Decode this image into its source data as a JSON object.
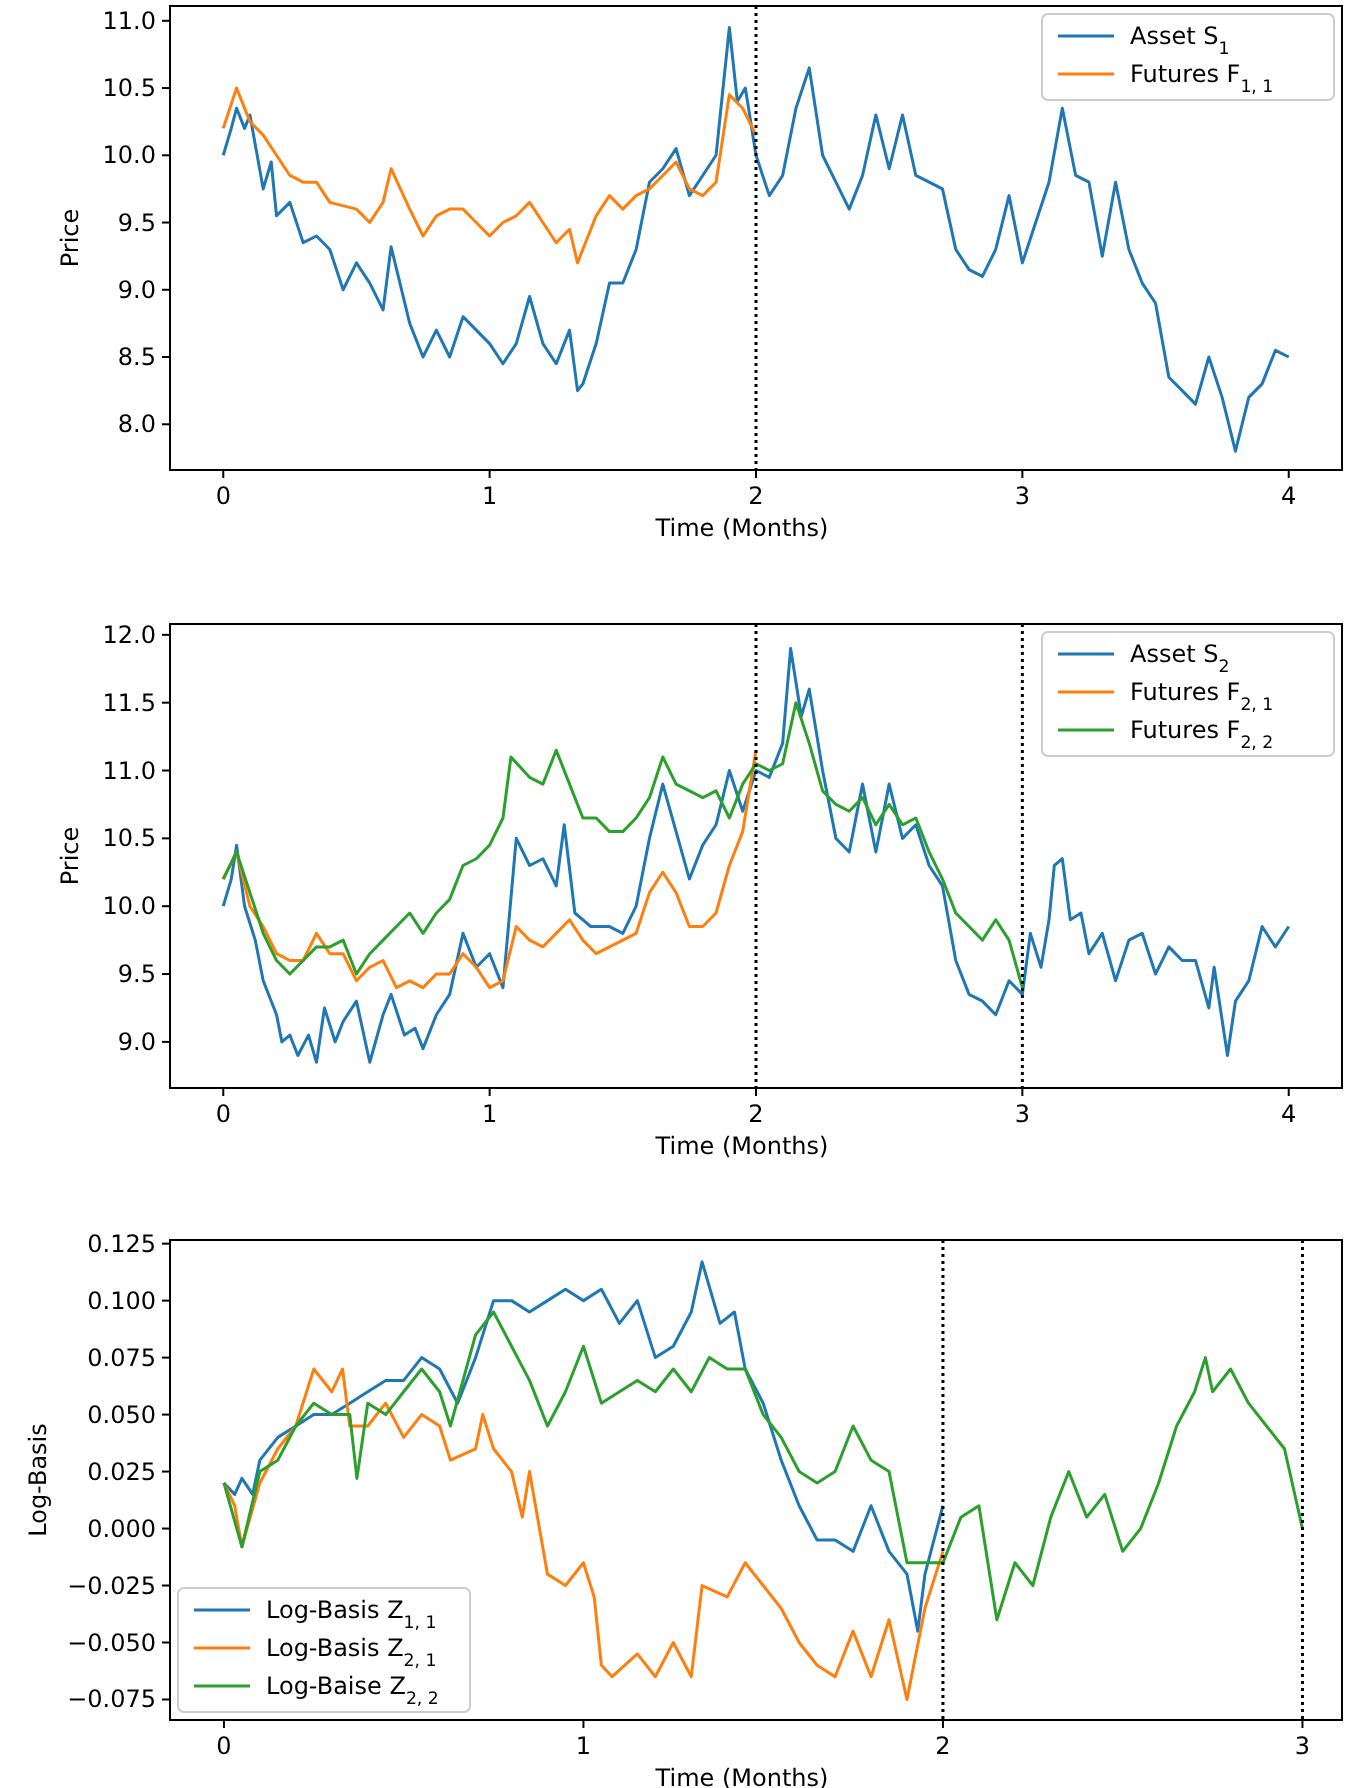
{
  "chart_data": [
    {
      "type": "line",
      "xlabel": "Time (Months)",
      "ylabel": "Price",
      "xlim": [
        -0.2,
        4.2
      ],
      "ylim": [
        7.66,
        11.11
      ],
      "xticks": [
        0,
        1,
        2,
        3,
        4
      ],
      "yticks": [
        {
          "value": 8,
          "label": "8.0"
        },
        {
          "value": 8.5,
          "label": "8.5"
        },
        {
          "value": 9,
          "label": "9.0"
        },
        {
          "value": 9.5,
          "label": "9.5"
        },
        {
          "value": 10,
          "label": "10.0"
        },
        {
          "value": 10.5,
          "label": "10.5"
        },
        {
          "value": 11,
          "label": "11.0"
        }
      ],
      "legend": "top right",
      "grid": false,
      "line_style": "solid",
      "ref_lines": [
        {
          "axis": "x",
          "value": 2,
          "color": "#000000",
          "line_style": "dotted"
        }
      ],
      "series": [
        {
          "name": "Asset S$_{1}$",
          "color": "#1f77b4",
          "x": [
            0,
            0.03,
            0.05,
            0.08,
            0.1,
            0.15,
            0.18,
            0.2,
            0.25,
            0.3,
            0.35,
            0.4,
            0.45,
            0.5,
            0.55,
            0.6,
            0.63,
            0.7,
            0.75,
            0.8,
            0.85,
            0.9,
            0.95,
            1.0,
            1.05,
            1.1,
            1.15,
            1.2,
            1.25,
            1.3,
            1.33,
            1.35,
            1.4,
            1.45,
            1.5,
            1.55,
            1.6,
            1.65,
            1.7,
            1.75,
            1.8,
            1.85,
            1.9,
            1.93,
            1.96,
            2.0,
            2.05,
            2.1,
            2.15,
            2.2,
            2.25,
            2.3,
            2.35,
            2.4,
            2.45,
            2.5,
            2.55,
            2.6,
            2.7,
            2.75,
            2.8,
            2.85,
            2.9,
            2.95,
            3.0,
            3.05,
            3.1,
            3.15,
            3.2,
            3.25,
            3.3,
            3.35,
            3.4,
            3.45,
            3.5,
            3.55,
            3.6,
            3.65,
            3.7,
            3.75,
            3.8,
            3.85,
            3.9,
            3.95,
            4.0
          ],
          "values": [
            10.0,
            10.2,
            10.35,
            10.2,
            10.3,
            9.75,
            9.95,
            9.55,
            9.65,
            9.35,
            9.4,
            9.3,
            9.0,
            9.2,
            9.05,
            8.85,
            9.32,
            8.75,
            8.5,
            8.7,
            8.5,
            8.8,
            8.7,
            8.6,
            8.45,
            8.6,
            8.95,
            8.6,
            8.45,
            8.7,
            8.25,
            8.3,
            8.6,
            9.05,
            9.05,
            9.3,
            9.8,
            9.9,
            10.05,
            9.7,
            9.85,
            10.0,
            10.95,
            10.4,
            10.5,
            10.0,
            9.7,
            9.85,
            10.35,
            10.65,
            10.0,
            9.8,
            9.6,
            9.85,
            10.3,
            9.9,
            10.3,
            9.85,
            9.75,
            9.3,
            9.15,
            9.1,
            9.3,
            9.7,
            9.2,
            9.5,
            9.8,
            10.35,
            9.85,
            9.8,
            9.25,
            9.8,
            9.3,
            9.05,
            8.9,
            8.35,
            8.25,
            8.15,
            8.5,
            8.2,
            7.8,
            8.2,
            8.3,
            8.55,
            8.5
          ]
        },
        {
          "name": "Futures F$_{1, 1}$",
          "color": "#ff7f0e",
          "x": [
            0,
            0.05,
            0.1,
            0.15,
            0.2,
            0.25,
            0.3,
            0.35,
            0.4,
            0.5,
            0.55,
            0.6,
            0.63,
            0.7,
            0.75,
            0.8,
            0.85,
            0.9,
            0.95,
            1.0,
            1.05,
            1.1,
            1.15,
            1.2,
            1.25,
            1.3,
            1.33,
            1.4,
            1.45,
            1.5,
            1.55,
            1.6,
            1.65,
            1.7,
            1.75,
            1.8,
            1.85,
            1.9,
            1.95,
            2.0
          ],
          "values": [
            10.2,
            10.5,
            10.25,
            10.15,
            10.0,
            9.85,
            9.8,
            9.8,
            9.65,
            9.6,
            9.5,
            9.65,
            9.9,
            9.6,
            9.4,
            9.55,
            9.6,
            9.6,
            9.5,
            9.4,
            9.5,
            9.55,
            9.65,
            9.5,
            9.35,
            9.45,
            9.2,
            9.55,
            9.7,
            9.6,
            9.7,
            9.75,
            9.85,
            9.95,
            9.75,
            9.7,
            9.8,
            10.45,
            10.35,
            10.15
          ]
        }
      ]
    },
    {
      "type": "line",
      "xlabel": "Time (Months)",
      "ylabel": "Price",
      "xlim": [
        -0.2,
        4.2
      ],
      "ylim": [
        8.66,
        12.08
      ],
      "xticks": [
        0,
        1,
        2,
        3,
        4
      ],
      "yticks": [
        {
          "value": 9,
          "label": "9.0"
        },
        {
          "value": 9.5,
          "label": "9.5"
        },
        {
          "value": 10,
          "label": "10.0"
        },
        {
          "value": 10.5,
          "label": "10.5"
        },
        {
          "value": 11,
          "label": "11.0"
        },
        {
          "value": 11.5,
          "label": "11.5"
        },
        {
          "value": 12,
          "label": "12.0"
        }
      ],
      "legend": "top right",
      "grid": false,
      "line_style": "solid",
      "ref_lines": [
        {
          "axis": "x",
          "value": 2,
          "color": "#000000",
          "line_style": "dotted"
        },
        {
          "axis": "x",
          "value": 3,
          "color": "#000000",
          "line_style": "dotted"
        }
      ],
      "series": [
        {
          "name": "Asset S$_{2}$",
          "color": "#1f77b4",
          "x": [
            0,
            0.03,
            0.05,
            0.08,
            0.12,
            0.15,
            0.2,
            0.22,
            0.25,
            0.28,
            0.32,
            0.35,
            0.38,
            0.42,
            0.45,
            0.5,
            0.55,
            0.6,
            0.63,
            0.68,
            0.72,
            0.75,
            0.8,
            0.85,
            0.9,
            0.95,
            1.0,
            1.05,
            1.1,
            1.15,
            1.2,
            1.25,
            1.28,
            1.32,
            1.38,
            1.45,
            1.5,
            1.55,
            1.6,
            1.65,
            1.7,
            1.75,
            1.8,
            1.85,
            1.9,
            1.95,
            2.0,
            2.05,
            2.1,
            2.13,
            2.17,
            2.2,
            2.25,
            2.3,
            2.35,
            2.4,
            2.45,
            2.5,
            2.55,
            2.6,
            2.65,
            2.7,
            2.75,
            2.8,
            2.85,
            2.9,
            2.95,
            3.0,
            3.03,
            3.07,
            3.1,
            3.12,
            3.15,
            3.18,
            3.22,
            3.25,
            3.3,
            3.35,
            3.4,
            3.45,
            3.5,
            3.55,
            3.6,
            3.65,
            3.7,
            3.72,
            3.77,
            3.8,
            3.85,
            3.9,
            3.95,
            4.0
          ],
          "values": [
            10.0,
            10.2,
            10.45,
            10.0,
            9.75,
            9.45,
            9.2,
            9.0,
            9.05,
            8.9,
            9.05,
            8.85,
            9.25,
            9.0,
            9.15,
            9.3,
            8.85,
            9.2,
            9.35,
            9.05,
            9.1,
            8.95,
            9.2,
            9.35,
            9.8,
            9.55,
            9.65,
            9.4,
            10.5,
            10.3,
            10.35,
            10.15,
            10.6,
            9.95,
            9.85,
            9.85,
            9.8,
            10.0,
            10.5,
            10.9,
            10.55,
            10.2,
            10.45,
            10.6,
            11.0,
            10.7,
            11.0,
            10.95,
            11.2,
            11.9,
            11.4,
            11.6,
            11.0,
            10.5,
            10.4,
            10.9,
            10.4,
            10.9,
            10.5,
            10.6,
            10.3,
            10.15,
            9.6,
            9.35,
            9.3,
            9.2,
            9.45,
            9.35,
            9.8,
            9.55,
            9.9,
            10.3,
            10.35,
            9.9,
            9.95,
            9.65,
            9.8,
            9.45,
            9.75,
            9.8,
            9.5,
            9.7,
            9.6,
            9.6,
            9.25,
            9.55,
            8.9,
            9.3,
            9.45,
            9.85,
            9.7,
            9.85
          ]
        },
        {
          "name": "Futures F$_{2, 1}$",
          "color": "#ff7f0e",
          "x": [
            0,
            0.05,
            0.1,
            0.15,
            0.2,
            0.25,
            0.3,
            0.35,
            0.4,
            0.45,
            0.5,
            0.55,
            0.6,
            0.65,
            0.7,
            0.75,
            0.8,
            0.85,
            0.9,
            0.95,
            1.0,
            1.05,
            1.1,
            1.15,
            1.2,
            1.25,
            1.3,
            1.35,
            1.4,
            1.45,
            1.5,
            1.55,
            1.6,
            1.65,
            1.7,
            1.75,
            1.8,
            1.85,
            1.9,
            1.95,
            2.0
          ],
          "values": [
            10.2,
            10.4,
            10.0,
            9.85,
            9.65,
            9.6,
            9.6,
            9.8,
            9.65,
            9.65,
            9.45,
            9.55,
            9.6,
            9.4,
            9.45,
            9.4,
            9.5,
            9.5,
            9.65,
            9.55,
            9.4,
            9.45,
            9.85,
            9.75,
            9.7,
            9.8,
            9.9,
            9.75,
            9.65,
            9.7,
            9.75,
            9.8,
            10.1,
            10.25,
            10.1,
            9.85,
            9.85,
            9.95,
            10.3,
            10.55,
            11.15
          ]
        },
        {
          "name": "Futures F$_{2, 2}$",
          "color": "#2ca02c",
          "x": [
            0,
            0.05,
            0.1,
            0.15,
            0.2,
            0.25,
            0.3,
            0.35,
            0.4,
            0.45,
            0.5,
            0.55,
            0.6,
            0.65,
            0.7,
            0.75,
            0.8,
            0.85,
            0.9,
            0.95,
            1.0,
            1.05,
            1.08,
            1.15,
            1.2,
            1.25,
            1.3,
            1.35,
            1.4,
            1.45,
            1.5,
            1.55,
            1.6,
            1.65,
            1.7,
            1.75,
            1.8,
            1.85,
            1.9,
            1.95,
            2.0,
            2.05,
            2.1,
            2.15,
            2.2,
            2.25,
            2.3,
            2.35,
            2.4,
            2.45,
            2.5,
            2.55,
            2.6,
            2.65,
            2.7,
            2.75,
            2.8,
            2.85,
            2.9,
            2.95,
            3.0
          ],
          "values": [
            10.2,
            10.4,
            10.1,
            9.8,
            9.6,
            9.5,
            9.6,
            9.7,
            9.7,
            9.75,
            9.5,
            9.65,
            9.75,
            9.85,
            9.95,
            9.8,
            9.95,
            10.05,
            10.3,
            10.35,
            10.45,
            10.65,
            11.1,
            10.95,
            10.9,
            11.15,
            10.9,
            10.65,
            10.65,
            10.55,
            10.55,
            10.65,
            10.8,
            11.1,
            10.9,
            10.85,
            10.8,
            10.85,
            10.65,
            10.9,
            11.05,
            11.0,
            11.05,
            11.5,
            11.2,
            10.85,
            10.75,
            10.7,
            10.8,
            10.6,
            10.75,
            10.6,
            10.65,
            10.4,
            10.2,
            9.95,
            9.85,
            9.75,
            9.9,
            9.75,
            9.4
          ]
        }
      ]
    },
    {
      "type": "line",
      "xlabel": "Time (Months)",
      "ylabel": "Log-Basis",
      "xlim": [
        -0.15,
        3.11
      ],
      "ylim": [
        -0.084,
        0.1266
      ],
      "xticks": [
        0,
        1,
        2,
        3
      ],
      "yticks": [
        {
          "value": -0.075,
          "label": "−0.075"
        },
        {
          "value": -0.05,
          "label": "−0.050"
        },
        {
          "value": -0.025,
          "label": "−0.025"
        },
        {
          "value": 0,
          "label": "0.000"
        },
        {
          "value": 0.025,
          "label": "0.025"
        },
        {
          "value": 0.05,
          "label": "0.050"
        },
        {
          "value": 0.075,
          "label": "0.075"
        },
        {
          "value": 0.1,
          "label": "0.100"
        },
        {
          "value": 0.125,
          "label": "0.125"
        }
      ],
      "legend": "bottom left",
      "grid": false,
      "line_style": "solid",
      "ref_lines": [
        {
          "axis": "x",
          "value": 2,
          "color": "#000000",
          "line_style": "dotted"
        },
        {
          "axis": "x",
          "value": 3,
          "color": "#000000",
          "line_style": "dotted"
        }
      ],
      "series": [
        {
          "name": "Log-Basis Z$_{1, 1}$",
          "color": "#1f77b4",
          "x": [
            0,
            0.03,
            0.05,
            0.08,
            0.1,
            0.15,
            0.2,
            0.25,
            0.3,
            0.35,
            0.4,
            0.45,
            0.5,
            0.55,
            0.6,
            0.65,
            0.7,
            0.75,
            0.8,
            0.85,
            0.9,
            0.95,
            1.0,
            1.05,
            1.1,
            1.15,
            1.2,
            1.25,
            1.3,
            1.33,
            1.38,
            1.42,
            1.45,
            1.5,
            1.55,
            1.6,
            1.65,
            1.7,
            1.75,
            1.8,
            1.85,
            1.9,
            1.93,
            1.95,
            2.0
          ],
          "values": [
            0.02,
            0.015,
            0.022,
            0.015,
            0.03,
            0.04,
            0.045,
            0.05,
            0.05,
            0.055,
            0.06,
            0.065,
            0.065,
            0.075,
            0.07,
            0.055,
            0.075,
            0.1,
            0.1,
            0.095,
            0.1,
            0.105,
            0.1,
            0.105,
            0.09,
            0.1,
            0.075,
            0.08,
            0.095,
            0.117,
            0.09,
            0.095,
            0.07,
            0.055,
            0.03,
            0.01,
            -0.005,
            -0.005,
            -0.01,
            0.01,
            -0.01,
            -0.02,
            -0.045,
            -0.02,
            0.01
          ]
        },
        {
          "name": "Log-Basis Z$_{2, 1}$",
          "color": "#ff7f0e",
          "x": [
            0,
            0.03,
            0.05,
            0.1,
            0.15,
            0.2,
            0.25,
            0.3,
            0.33,
            0.35,
            0.4,
            0.45,
            0.5,
            0.55,
            0.6,
            0.63,
            0.7,
            0.72,
            0.75,
            0.8,
            0.83,
            0.85,
            0.9,
            0.95,
            1.0,
            1.03,
            1.05,
            1.08,
            1.15,
            1.2,
            1.25,
            1.3,
            1.33,
            1.4,
            1.45,
            1.5,
            1.55,
            1.6,
            1.65,
            1.7,
            1.75,
            1.8,
            1.85,
            1.9,
            1.95,
            2.0
          ],
          "values": [
            0.02,
            0.01,
            -0.008,
            0.02,
            0.035,
            0.045,
            0.07,
            0.06,
            0.07,
            0.045,
            0.045,
            0.055,
            0.04,
            0.05,
            0.045,
            0.03,
            0.035,
            0.05,
            0.035,
            0.025,
            0.005,
            0.025,
            -0.02,
            -0.025,
            -0.015,
            -0.03,
            -0.06,
            -0.065,
            -0.055,
            -0.065,
            -0.05,
            -0.065,
            -0.025,
            -0.03,
            -0.015,
            -0.025,
            -0.035,
            -0.05,
            -0.06,
            -0.065,
            -0.045,
            -0.065,
            -0.04,
            -0.075,
            -0.035,
            -0.01
          ]
        },
        {
          "name": "Log-Baise Z$_{2, 2}$",
          "color": "#2ca02c",
          "x": [
            0,
            0.05,
            0.1,
            0.15,
            0.2,
            0.25,
            0.3,
            0.35,
            0.37,
            0.4,
            0.45,
            0.5,
            0.55,
            0.6,
            0.63,
            0.7,
            0.75,
            0.8,
            0.85,
            0.9,
            0.95,
            1.0,
            1.05,
            1.1,
            1.15,
            1.2,
            1.25,
            1.3,
            1.35,
            1.4,
            1.45,
            1.5,
            1.55,
            1.6,
            1.65,
            1.7,
            1.75,
            1.8,
            1.85,
            1.9,
            1.95,
            2.0,
            2.05,
            2.1,
            2.15,
            2.2,
            2.25,
            2.3,
            2.35,
            2.4,
            2.45,
            2.5,
            2.55,
            2.6,
            2.65,
            2.7,
            2.73,
            2.75,
            2.8,
            2.85,
            2.9,
            2.95,
            3.0
          ],
          "values": [
            0.02,
            -0.008,
            0.025,
            0.03,
            0.045,
            0.055,
            0.05,
            0.05,
            0.022,
            0.055,
            0.05,
            0.06,
            0.07,
            0.06,
            0.045,
            0.085,
            0.095,
            0.08,
            0.065,
            0.045,
            0.06,
            0.08,
            0.055,
            0.06,
            0.065,
            0.06,
            0.07,
            0.06,
            0.075,
            0.07,
            0.07,
            0.05,
            0.04,
            0.025,
            0.02,
            0.025,
            0.045,
            0.03,
            0.025,
            -0.015,
            -0.015,
            -0.015,
            0.005,
            0.01,
            -0.04,
            -0.015,
            -0.025,
            0.005,
            0.025,
            0.005,
            0.015,
            -0.01,
            0.0,
            0.02,
            0.045,
            0.06,
            0.075,
            0.06,
            0.07,
            0.055,
            0.045,
            0.035,
            0.0
          ]
        }
      ]
    }
  ]
}
